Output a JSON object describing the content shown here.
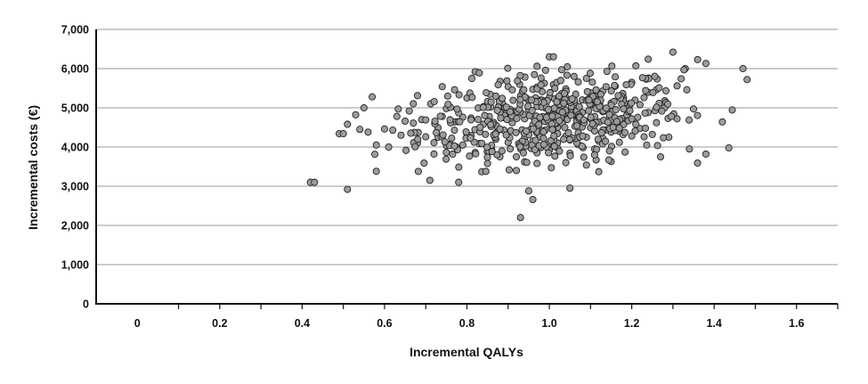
{
  "chart_data": {
    "type": "scatter",
    "title": "",
    "xlabel": "Incremental QALYs",
    "ylabel": "Incremental costs (€)",
    "xlim": [
      -0.1,
      1.7
    ],
    "ylim": [
      0,
      7000
    ],
    "x_ticks": [
      0,
      0.2,
      0.4,
      0.6,
      0.8,
      1.0,
      1.2,
      1.4,
      1.6
    ],
    "x_tick_labels": [
      "0",
      "0.2",
      "0.4",
      "0.6",
      "0.8",
      "1.0",
      "1.2",
      "1.4",
      "1.6"
    ],
    "y_ticks": [
      0,
      1000,
      2000,
      3000,
      4000,
      5000,
      6000,
      7000
    ],
    "y_tick_labels": [
      "0",
      "1,000",
      "2,000",
      "3,000",
      "4,000",
      "5,000",
      "6,000",
      "7,000"
    ],
    "grid": "horizontal",
    "legend": "none",
    "points": [
      [
        0.42,
        3100
      ],
      [
        0.43,
        3100
      ],
      [
        0.51,
        2920
      ],
      [
        0.49,
        4340
      ],
      [
        0.5,
        4340
      ],
      [
        0.51,
        4580
      ],
      [
        0.53,
        4820
      ],
      [
        0.54,
        4450
      ],
      [
        0.55,
        5000
      ],
      [
        0.56,
        4380
      ],
      [
        0.57,
        5280
      ],
      [
        0.58,
        4050
      ],
      [
        0.58,
        3380
      ],
      [
        0.61,
        4000
      ],
      [
        0.62,
        4430
      ],
      [
        0.63,
        4780
      ],
      [
        0.64,
        4300
      ],
      [
        0.66,
        4920
      ],
      [
        0.67,
        4610
      ],
      [
        0.68,
        5310
      ],
      [
        0.69,
        4700
      ],
      [
        0.7,
        4260
      ],
      [
        0.71,
        3150
      ],
      [
        0.72,
        4110
      ],
      [
        0.73,
        4490
      ],
      [
        0.74,
        5540
      ],
      [
        0.75,
        4980
      ],
      [
        0.76,
        4070
      ],
      [
        0.77,
        5460
      ],
      [
        0.78,
        3100
      ],
      [
        0.79,
        4760
      ],
      [
        0.8,
        5250
      ],
      [
        0.81,
        4290
      ],
      [
        0.82,
        5920
      ],
      [
        0.83,
        5890
      ],
      [
        0.84,
        5030
      ],
      [
        0.85,
        3580
      ],
      [
        0.86,
        4610
      ],
      [
        0.87,
        5300
      ],
      [
        0.88,
        3750
      ],
      [
        0.89,
        4430
      ],
      [
        0.9,
        5540
      ],
      [
        0.91,
        4920
      ],
      [
        0.92,
        3400
      ],
      [
        0.93,
        2200
      ],
      [
        0.94,
        4230
      ],
      [
        0.95,
        2880
      ],
      [
        0.96,
        2660
      ],
      [
        0.97,
        6060
      ],
      [
        0.98,
        5200
      ],
      [
        0.99,
        5000
      ],
      [
        1.0,
        6300
      ],
      [
        1.01,
        6300
      ],
      [
        1.02,
        4500
      ],
      [
        1.03,
        5970
      ],
      [
        1.04,
        3600
      ],
      [
        1.05,
        2950
      ],
      [
        1.06,
        5800
      ],
      [
        1.07,
        4660
      ],
      [
        1.08,
        5200
      ],
      [
        1.09,
        3540
      ],
      [
        1.1,
        4720
      ],
      [
        1.11,
        5300
      ],
      [
        1.12,
        3370
      ],
      [
        1.13,
        4900
      ],
      [
        1.14,
        5930
      ],
      [
        1.15,
        3630
      ],
      [
        1.16,
        5790
      ],
      [
        1.17,
        4400
      ],
      [
        1.18,
        4700
      ],
      [
        1.19,
        5100
      ],
      [
        1.2,
        5650
      ],
      [
        1.21,
        6070
      ],
      [
        1.22,
        4470
      ],
      [
        1.23,
        5260
      ],
      [
        1.24,
        6240
      ],
      [
        1.25,
        4320
      ],
      [
        1.26,
        5460
      ],
      [
        1.27,
        3750
      ],
      [
        1.28,
        5000
      ],
      [
        1.29,
        4250
      ],
      [
        1.3,
        6420
      ],
      [
        1.31,
        5560
      ],
      [
        1.32,
        5740
      ],
      [
        1.33,
        6000
      ],
      [
        1.34,
        3950
      ],
      [
        1.35,
        4970
      ],
      [
        1.36,
        6230
      ],
      [
        1.38,
        6130
      ],
      [
        1.38,
        3820
      ],
      [
        1.42,
        4640
      ],
      [
        1.47,
        6000
      ],
      [
        1.48,
        5720
      ],
      [
        0.95,
        4310
      ],
      [
        0.97,
        3850
      ],
      [
        0.99,
        4690
      ],
      [
        1.0,
        4850
      ],
      [
        1.02,
        5120
      ],
      [
        1.04,
        4280
      ],
      [
        1.05,
        4930
      ],
      [
        1.07,
        4060
      ],
      [
        1.08,
        4510
      ],
      [
        1.1,
        5380
      ],
      [
        1.12,
        4150
      ],
      [
        1.15,
        4380
      ],
      [
        1.18,
        5260
      ],
      [
        1.21,
        4580
      ],
      [
        1.24,
        4880
      ],
      [
        0.88,
        4970
      ],
      [
        0.9,
        4120
      ],
      [
        0.86,
        3940
      ],
      [
        0.84,
        4580
      ],
      [
        0.82,
        3860
      ],
      [
        0.8,
        4330
      ],
      [
        0.78,
        4870
      ],
      [
        0.76,
        5010
      ],
      [
        0.93,
        5300
      ],
      [
        0.96,
        5470
      ],
      [
        0.98,
        5760
      ],
      [
        1.01,
        5590
      ],
      [
        1.03,
        5360
      ],
      [
        1.06,
        4820
      ],
      [
        1.09,
        5190
      ],
      [
        1.11,
        4780
      ],
      [
        1.14,
        4650
      ],
      [
        1.17,
        4120
      ],
      [
        0.92,
        3750
      ],
      [
        0.94,
        3620
      ],
      [
        0.97,
        3580
      ],
      [
        1.0,
        3920
      ],
      [
        1.02,
        3970
      ],
      [
        1.05,
        3840
      ],
      [
        1.08,
        4010
      ],
      [
        1.11,
        3950
      ],
      [
        1.13,
        4220
      ],
      [
        0.89,
        4750
      ],
      [
        0.87,
        4200
      ],
      [
        0.85,
        5160
      ],
      [
        0.83,
        4090
      ],
      [
        0.81,
        4740
      ],
      [
        0.79,
        4050
      ],
      [
        0.77,
        4640
      ],
      [
        0.74,
        4780
      ],
      [
        0.72,
        3820
      ],
      [
        0.7,
        4690
      ],
      [
        0.68,
        4100
      ],
      [
        0.99,
        4430
      ],
      [
        1.01,
        4620
      ],
      [
        1.03,
        4740
      ],
      [
        1.06,
        5040
      ],
      [
        1.08,
        4880
      ],
      [
        1.1,
        4490
      ],
      [
        1.12,
        4970
      ],
      [
        1.15,
        5120
      ],
      [
        1.19,
        4830
      ],
      [
        1.22,
        5080
      ],
      [
        1.26,
        4620
      ],
      [
        1.28,
        5180
      ],
      [
        1.31,
        4720
      ],
      [
        0.91,
        4620
      ],
      [
        0.95,
        4960
      ],
      [
        0.98,
        5030
      ],
      [
        1.04,
        5480
      ],
      [
        1.07,
        5660
      ],
      [
        1.09,
        5750
      ],
      [
        1.13,
        5430
      ],
      [
        1.16,
        5550
      ],
      [
        1.2,
        4280
      ],
      [
        1.23,
        4260
      ],
      [
        0.6,
        4460
      ],
      [
        0.65,
        4660
      ],
      [
        0.73,
        4250
      ],
      [
        0.75,
        3860
      ],
      [
        0.96,
        4150
      ],
      [
        0.94,
        4720
      ],
      [
        1.02,
        4340
      ],
      [
        1.05,
        4180
      ],
      [
        1.07,
        4360
      ],
      [
        1.09,
        4250
      ],
      [
        1.11,
        4410
      ]
    ]
  }
}
